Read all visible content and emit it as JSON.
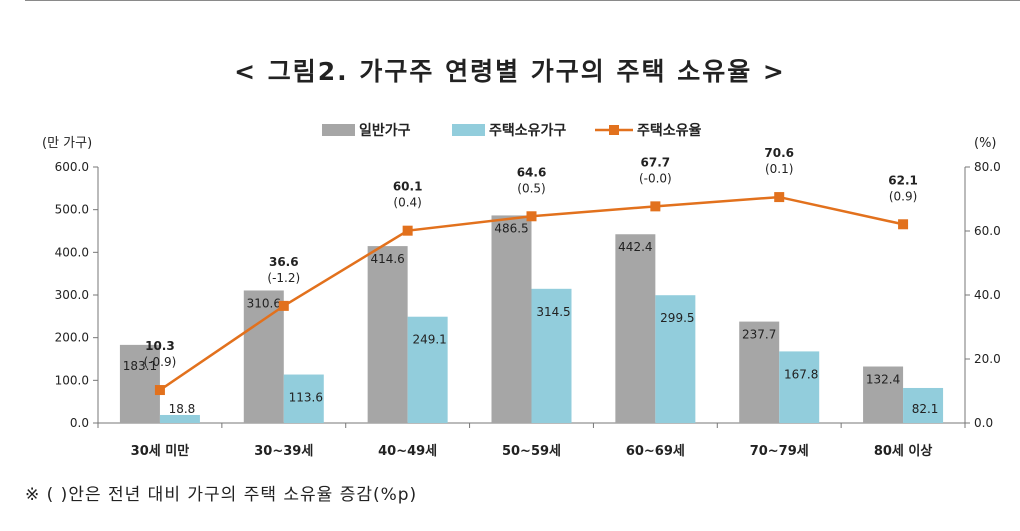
{
  "chart_data": {
    "type": "bar",
    "title": "< 그림2. 가구주 연령별 가구의 주택 소유율 >",
    "categories": [
      "30세 미만",
      "30~39세",
      "40~49세",
      "50~59세",
      "60~69세",
      "70~79세",
      "80세 이상"
    ],
    "series": [
      {
        "name": "일반가구",
        "type": "bar",
        "axis": "left",
        "color": "#a6a6a6",
        "values": [
          183.1,
          310.6,
          414.6,
          486.5,
          442.4,
          237.7,
          132.4
        ],
        "labels": [
          "183.1",
          "310.6",
          "414.6",
          "486.5",
          "442.4",
          "237.7",
          "132.4"
        ]
      },
      {
        "name": "주택소유가구",
        "type": "bar",
        "axis": "left",
        "color": "#92cddc",
        "values": [
          18.8,
          113.6,
          249.1,
          314.5,
          299.5,
          167.8,
          82.1
        ],
        "labels": [
          "18.8",
          "113.6",
          "249.1",
          "314.5",
          "299.5",
          "167.8",
          "82.1"
        ]
      },
      {
        "name": "주택소유율",
        "type": "line",
        "axis": "right",
        "color": "#e2711d",
        "values": [
          10.3,
          36.6,
          60.1,
          64.6,
          67.7,
          70.6,
          62.1
        ],
        "labels": [
          "10.3",
          "36.6",
          "60.1",
          "64.6",
          "67.7",
          "70.6",
          "62.1"
        ],
        "changes": [
          "(-0.9)",
          "(-1.2)",
          "(0.4)",
          "(0.5)",
          "(-0.0)",
          "(0.1)",
          "(0.9)"
        ]
      }
    ],
    "yaxis_left": {
      "label": "(만 가구)",
      "min": 0,
      "max": 600,
      "ticks": [
        "0.0",
        "100.0",
        "200.0",
        "300.0",
        "400.0",
        "500.0",
        "600.0"
      ]
    },
    "yaxis_right": {
      "label": "(%)",
      "min": 0,
      "max": 80,
      "ticks": [
        "0.0",
        "20.0",
        "40.0",
        "60.0",
        "80.0"
      ]
    },
    "legend_position": "top-center",
    "grid": false
  },
  "footnote": "※ ( )안은 전년 대비 가구의 주택 소유율 증감(%p)"
}
